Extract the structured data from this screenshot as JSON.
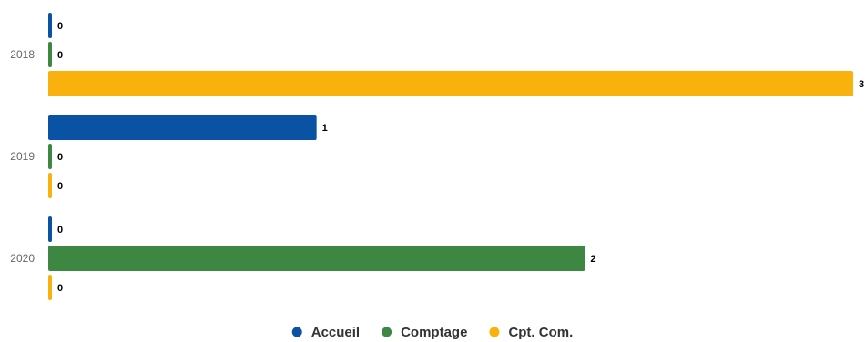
{
  "chart_data": {
    "type": "bar",
    "orientation": "horizontal",
    "categories": [
      "2018",
      "2019",
      "2020"
    ],
    "series": [
      {
        "name": "Accueil",
        "values": [
          0,
          1,
          0
        ],
        "color": "#0a52a3"
      },
      {
        "name": "Comptage",
        "values": [
          0,
          0,
          2
        ],
        "color": "#3d8743"
      },
      {
        "name": "Cpt. Com.",
        "values": [
          3,
          0,
          0
        ],
        "color": "#f9b10e"
      }
    ],
    "xlim": [
      0,
      3
    ],
    "grid": false,
    "data_labels": true,
    "legend_position": "bottom-center"
  }
}
